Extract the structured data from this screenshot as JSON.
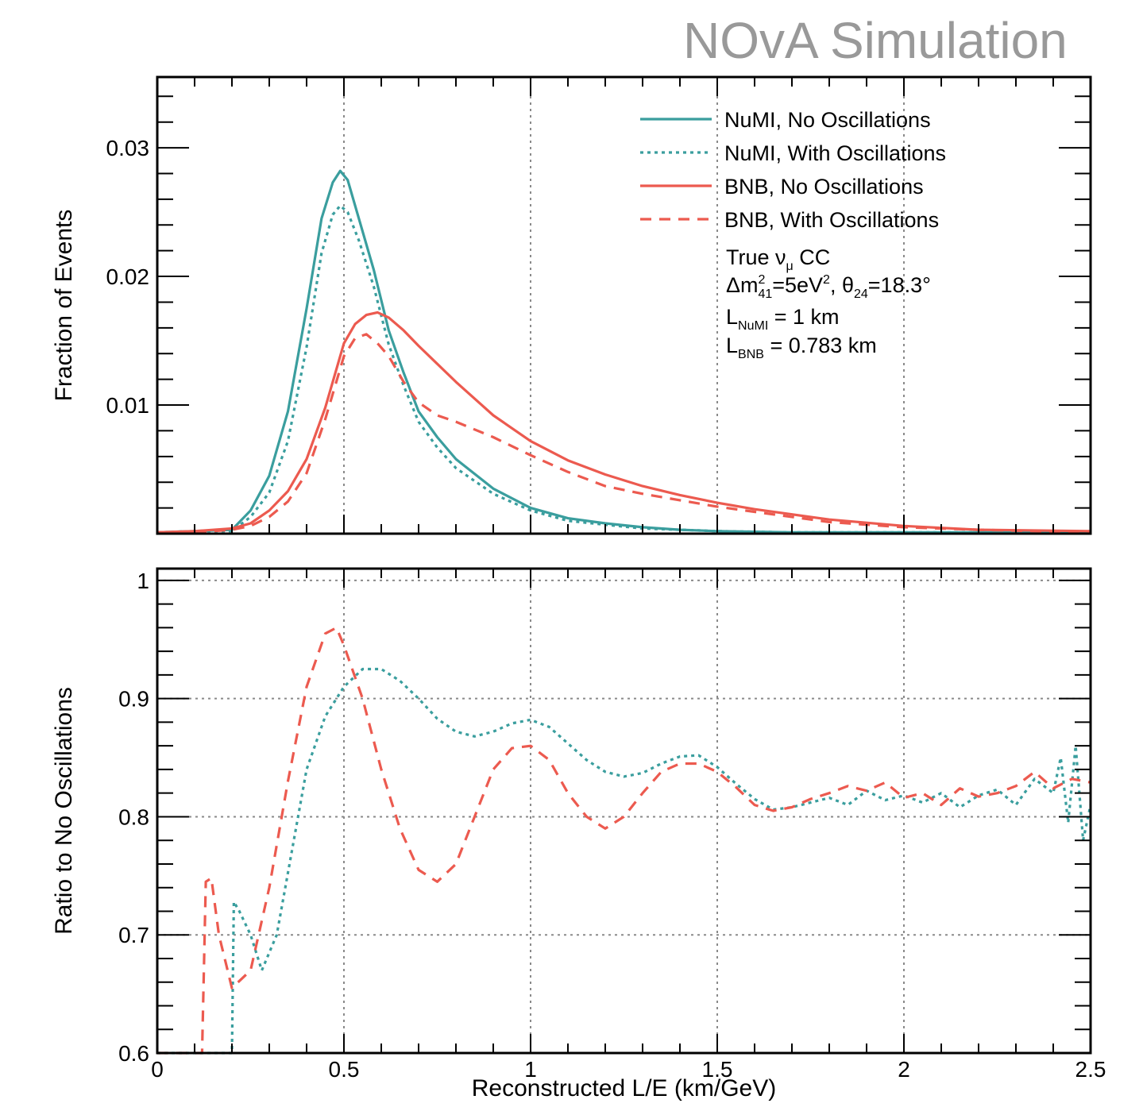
{
  "watermark": "NOvA Simulation",
  "colors": {
    "numi": "#3a9e9e",
    "bnb": "#ec5a4f",
    "axis": "#000000",
    "grid": "#9a9a9a"
  },
  "chart_data": [
    {
      "type": "line",
      "xlabel": "",
      "ylabel": "Fraction of Events",
      "xlim": [
        0,
        2.5
      ],
      "ylim": [
        0,
        0.0355
      ],
      "grid": "vertical dotted",
      "x_ticks": [
        "0.5",
        "1",
        "1.5",
        "2"
      ],
      "y_ticks": [
        {
          "value": 0.01,
          "label": "0.01"
        },
        {
          "value": 0.02,
          "label": "0.02"
        },
        {
          "value": 0.03,
          "label": "0.03"
        }
      ],
      "legend": {
        "placement": "top-right",
        "entries": [
          {
            "label": "NuMI, No Oscillations",
            "series": "NuMI, No Oscillations"
          },
          {
            "label": "NuMI, With Oscillations",
            "series": "NuMI, With Oscillations"
          },
          {
            "label": "BNB, No Oscillations",
            "series": "BNB, No Oscillations"
          },
          {
            "label": "BNB, With Oscillations",
            "series": "BNB, With Oscillations"
          }
        ]
      },
      "annotations": {
        "line1_main": "True ",
        "line1_nu": "ν",
        "line1_sub": "μ",
        "line1_end": " CC",
        "line2_dm": "Δm",
        "line2_sup": "2",
        "line2_sub": "41",
        "line2_val": "=5eV",
        "line2_sup2": "2",
        "line2_theta": ", θ",
        "line2_sub2": "24",
        "line2_end": "=18.3°",
        "line3_L": "L",
        "line3_sub": "NuMI",
        "line3_val": " = 1 km",
        "line4_L": "L",
        "line4_sub": "BNB",
        "line4_val": " = 0.783 km"
      },
      "series": [
        {
          "name": "NuMI, No Oscillations",
          "style": "solid",
          "color": "#3a9e9e",
          "x": [
            0,
            0.1,
            0.2,
            0.25,
            0.3,
            0.35,
            0.4,
            0.44,
            0.47,
            0.49,
            0.51,
            0.54,
            0.58,
            0.62,
            0.66,
            0.7,
            0.75,
            0.8,
            0.9,
            1.0,
            1.1,
            1.2,
            1.3,
            1.4,
            1.5,
            1.7,
            2.0,
            2.5
          ],
          "y": [
            0.0001,
            0.0002,
            0.0003,
            0.0018,
            0.0045,
            0.0095,
            0.0175,
            0.0245,
            0.0273,
            0.0282,
            0.0275,
            0.0245,
            0.0205,
            0.0158,
            0.0125,
            0.0095,
            0.0075,
            0.0058,
            0.0035,
            0.002,
            0.0012,
            0.0008,
            0.0005,
            0.0003,
            0.0002,
            0.0001,
            0.0001,
            0.0001
          ]
        },
        {
          "name": "NuMI, With Oscillations",
          "style": "dotted",
          "color": "#3a9e9e",
          "x": [
            0,
            0.1,
            0.2,
            0.25,
            0.3,
            0.35,
            0.4,
            0.44,
            0.47,
            0.49,
            0.51,
            0.54,
            0.58,
            0.62,
            0.66,
            0.7,
            0.75,
            0.8,
            0.9,
            1.0,
            1.1,
            1.2,
            1.3,
            1.4,
            1.5,
            1.7,
            2.0,
            2.5
          ],
          "y": [
            0.0001,
            0.0002,
            0.0002,
            0.0013,
            0.0032,
            0.0072,
            0.0145,
            0.0218,
            0.0248,
            0.0255,
            0.025,
            0.0228,
            0.0192,
            0.0147,
            0.0115,
            0.0087,
            0.0067,
            0.0051,
            0.0031,
            0.0018,
            0.001,
            0.0007,
            0.0004,
            0.0003,
            0.0002,
            0.0001,
            0.0001,
            0.0001
          ]
        },
        {
          "name": "BNB, No Oscillations",
          "style": "solid",
          "color": "#ec5a4f",
          "x": [
            0,
            0.1,
            0.2,
            0.25,
            0.3,
            0.35,
            0.4,
            0.45,
            0.5,
            0.53,
            0.56,
            0.59,
            0.62,
            0.66,
            0.7,
            0.75,
            0.8,
            0.9,
            1.0,
            1.1,
            1.2,
            1.3,
            1.4,
            1.5,
            1.6,
            1.7,
            1.8,
            2.0,
            2.2,
            2.5
          ],
          "y": [
            0.0001,
            0.0002,
            0.0004,
            0.0008,
            0.0018,
            0.0033,
            0.0058,
            0.0098,
            0.0148,
            0.0163,
            0.017,
            0.0172,
            0.0168,
            0.0158,
            0.0146,
            0.0132,
            0.0118,
            0.0092,
            0.0072,
            0.0057,
            0.0046,
            0.0037,
            0.003,
            0.0024,
            0.0019,
            0.0015,
            0.0011,
            0.0006,
            0.0003,
            0.0002
          ]
        },
        {
          "name": "BNB, With Oscillations",
          "style": "dashed",
          "color": "#ec5a4f",
          "x": [
            0,
            0.1,
            0.2,
            0.25,
            0.3,
            0.35,
            0.4,
            0.45,
            0.5,
            0.53,
            0.56,
            0.59,
            0.62,
            0.66,
            0.7,
            0.75,
            0.8,
            0.9,
            1.0,
            1.1,
            1.2,
            1.3,
            1.4,
            1.5,
            1.6,
            1.7,
            1.8,
            2.0,
            2.2,
            2.5
          ],
          "y": [
            0.0001,
            0.0001,
            0.0003,
            0.0006,
            0.0013,
            0.0025,
            0.0047,
            0.0089,
            0.0138,
            0.0152,
            0.0155,
            0.0148,
            0.0138,
            0.0118,
            0.0102,
            0.0092,
            0.0087,
            0.0075,
            0.0061,
            0.0048,
            0.0037,
            0.0031,
            0.0026,
            0.0021,
            0.0017,
            0.0013,
            0.0009,
            0.0005,
            0.0003,
            0.0001
          ]
        }
      ]
    },
    {
      "type": "line",
      "xlabel": "Reconstructed L/E (km/GeV)",
      "ylabel": "Ratio to No Oscillations",
      "xlim": [
        0,
        2.5
      ],
      "ylim": [
        0.6,
        1.01
      ],
      "grid": "dotted",
      "x_ticks": [
        {
          "value": 0,
          "label": "0"
        },
        {
          "value": 0.5,
          "label": "0.5"
        },
        {
          "value": 1,
          "label": "1"
        },
        {
          "value": 1.5,
          "label": "1.5"
        },
        {
          "value": 2,
          "label": "2"
        },
        {
          "value": 2.5,
          "label": "2.5"
        }
      ],
      "y_ticks": [
        {
          "value": 0.6,
          "label": "0.6"
        },
        {
          "value": 0.7,
          "label": "0.7"
        },
        {
          "value": 0.8,
          "label": "0.8"
        },
        {
          "value": 0.9,
          "label": "0.9"
        },
        {
          "value": 1.0,
          "label": "1"
        }
      ],
      "series": [
        {
          "name": "NuMI ratio",
          "style": "dotted",
          "color": "#3a9e9e",
          "x": [
            0,
            0.19,
            0.2,
            0.205,
            0.22,
            0.25,
            0.28,
            0.32,
            0.36,
            0.4,
            0.45,
            0.5,
            0.55,
            0.6,
            0.65,
            0.7,
            0.75,
            0.8,
            0.85,
            0.9,
            0.95,
            1.0,
            1.05,
            1.1,
            1.15,
            1.2,
            1.25,
            1.3,
            1.35,
            1.4,
            1.45,
            1.5,
            1.55,
            1.6,
            1.65,
            1.7,
            1.75,
            1.8,
            1.85,
            1.9,
            1.95,
            2.0,
            2.05,
            2.1,
            2.15,
            2.2,
            2.25,
            2.3,
            2.35,
            2.4,
            2.42,
            2.44,
            2.46,
            2.48,
            2.5
          ],
          "y": [
            0.6,
            0.6,
            0.6,
            0.728,
            0.72,
            0.7,
            0.67,
            0.7,
            0.77,
            0.84,
            0.885,
            0.91,
            0.925,
            0.925,
            0.915,
            0.9,
            0.883,
            0.872,
            0.868,
            0.872,
            0.879,
            0.882,
            0.876,
            0.862,
            0.848,
            0.838,
            0.834,
            0.837,
            0.845,
            0.851,
            0.852,
            0.842,
            0.828,
            0.815,
            0.806,
            0.808,
            0.812,
            0.816,
            0.81,
            0.822,
            0.814,
            0.818,
            0.812,
            0.82,
            0.808,
            0.818,
            0.823,
            0.81,
            0.832,
            0.82,
            0.85,
            0.795,
            0.86,
            0.78,
            0.81
          ]
        },
        {
          "name": "BNB ratio",
          "style": "dashed",
          "color": "#ec5a4f",
          "x": [
            0,
            0.12,
            0.13,
            0.145,
            0.165,
            0.2,
            0.25,
            0.3,
            0.35,
            0.4,
            0.45,
            0.48,
            0.5,
            0.55,
            0.6,
            0.65,
            0.7,
            0.75,
            0.8,
            0.85,
            0.9,
            0.95,
            1.0,
            1.05,
            1.1,
            1.15,
            1.2,
            1.25,
            1.3,
            1.35,
            1.4,
            1.45,
            1.5,
            1.55,
            1.6,
            1.65,
            1.7,
            1.75,
            1.8,
            1.85,
            1.9,
            1.95,
            2.0,
            2.05,
            2.1,
            2.15,
            2.2,
            2.25,
            2.3,
            2.35,
            2.4,
            2.45,
            2.5
          ],
          "y": [
            0.6,
            0.6,
            0.745,
            0.748,
            0.7,
            0.655,
            0.67,
            0.74,
            0.83,
            0.91,
            0.955,
            0.96,
            0.945,
            0.9,
            0.84,
            0.79,
            0.755,
            0.745,
            0.76,
            0.8,
            0.84,
            0.858,
            0.86,
            0.848,
            0.82,
            0.8,
            0.79,
            0.8,
            0.82,
            0.838,
            0.845,
            0.845,
            0.838,
            0.825,
            0.81,
            0.805,
            0.808,
            0.815,
            0.82,
            0.826,
            0.822,
            0.829,
            0.816,
            0.82,
            0.81,
            0.824,
            0.817,
            0.82,
            0.826,
            0.838,
            0.824,
            0.832,
            0.829
          ]
        }
      ]
    }
  ]
}
